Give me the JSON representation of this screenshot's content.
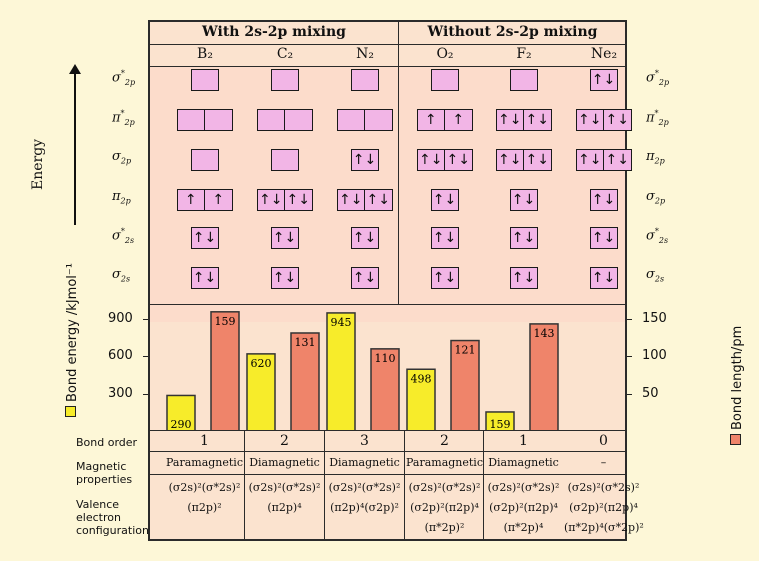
{
  "headers": {
    "left": "With 2s-2p mixing",
    "right": "Without 2s-2p mixing"
  },
  "molecules": [
    "B₂",
    "C₂",
    "N₂",
    "O₂",
    "F₂",
    "Ne₂"
  ],
  "energy_label": "Energy",
  "left_orbitals": [
    "σ*2p",
    "π*2p",
    "σ2p",
    "π2p",
    "σ*2s",
    "σ2s"
  ],
  "right_orbitals": [
    "σ*2p",
    "π*2p",
    "π2p",
    "σ2p",
    "σ*2s",
    "σ2s"
  ],
  "occupancy": {
    "B₂": [
      "",
      "|",
      "",
      "↑|↑",
      "↑↓",
      "↑↓"
    ],
    "C₂": [
      "",
      "|",
      "",
      "↑↓|↑↓",
      "↑↓",
      "↑↓"
    ],
    "N₂": [
      "",
      "|",
      "↑↓",
      "↑↓|↑↓",
      "↑↓",
      "↑↓"
    ],
    "O₂": [
      "",
      "↑|↑",
      "↑↓|↑↓",
      "↑↓",
      "↑↓",
      "↑↓"
    ],
    "F₂": [
      "",
      "↑↓|↑↓",
      "↑↓|↑↓",
      "↑↓",
      "↑↓",
      "↑↓"
    ],
    "Ne₂": [
      "↑↓",
      "↑↓|↑↓",
      "↑↓|↑↓",
      "↑↓",
      "↑↓",
      "↑↓"
    ]
  },
  "chart_data": {
    "type": "bar",
    "categories": [
      "B₂",
      "C₂",
      "N₂",
      "O₂",
      "F₂",
      "Ne₂"
    ],
    "series": [
      {
        "name": "Bond energy /kJmol⁻¹",
        "values": [
          290,
          620,
          945,
          498,
          159,
          null
        ],
        "color": "#f7ec2a",
        "axis": "left"
      },
      {
        "name": "Bond length/pm",
        "values": [
          159,
          131,
          110,
          121,
          143,
          null
        ],
        "color": "#ef846a",
        "axis": "right"
      }
    ],
    "y_left": {
      "label": "Bond energy /kJmol⁻¹",
      "ticks": [
        300,
        600,
        900
      ],
      "range": [
        0,
        1000
      ]
    },
    "y_right": {
      "label": "Bond length/pm",
      "ticks": [
        50,
        100,
        150
      ],
      "range": [
        0,
        166.7
      ]
    }
  },
  "table": {
    "bond_order_label": "Bond order",
    "magnetic_label": "Magnetic properties",
    "valence_label": "Valence electron configuration",
    "bond_order": [
      "1",
      "2",
      "3",
      "2",
      "1",
      "0"
    ],
    "magnetic": [
      "Paramagnetic",
      "Diamagnetic",
      "Diamagnetic",
      "Paramagnetic",
      "Diamagnetic",
      "–"
    ],
    "config": [
      [
        "(σ2s)²(σ*2s)²",
        "(π2p)²"
      ],
      [
        "(σ2s)²(σ*2s)²",
        "(π2p)⁴"
      ],
      [
        "(σ2s)²(σ*2s)²",
        "(π2p)⁴(σ2p)²"
      ],
      [
        "(σ2s)²(σ*2s)²",
        "(σ2p)²(π2p)⁴",
        "(π*2p)²"
      ],
      [
        "(σ2s)²(σ*2s)²",
        "(σ2p)²(π2p)⁴",
        "(π*2p)⁴"
      ],
      [
        "(σ2s)²(σ*2s)²",
        "(σ2p)²(π2p)⁴",
        "(π*2p)⁴(σ*2p)²"
      ]
    ]
  },
  "colors": {
    "background": "#fdf7d7",
    "panel": "#fbe3cf",
    "box": "#f2b5e6",
    "energy_bar": "#f7ec2a",
    "length_bar": "#ef846a"
  }
}
